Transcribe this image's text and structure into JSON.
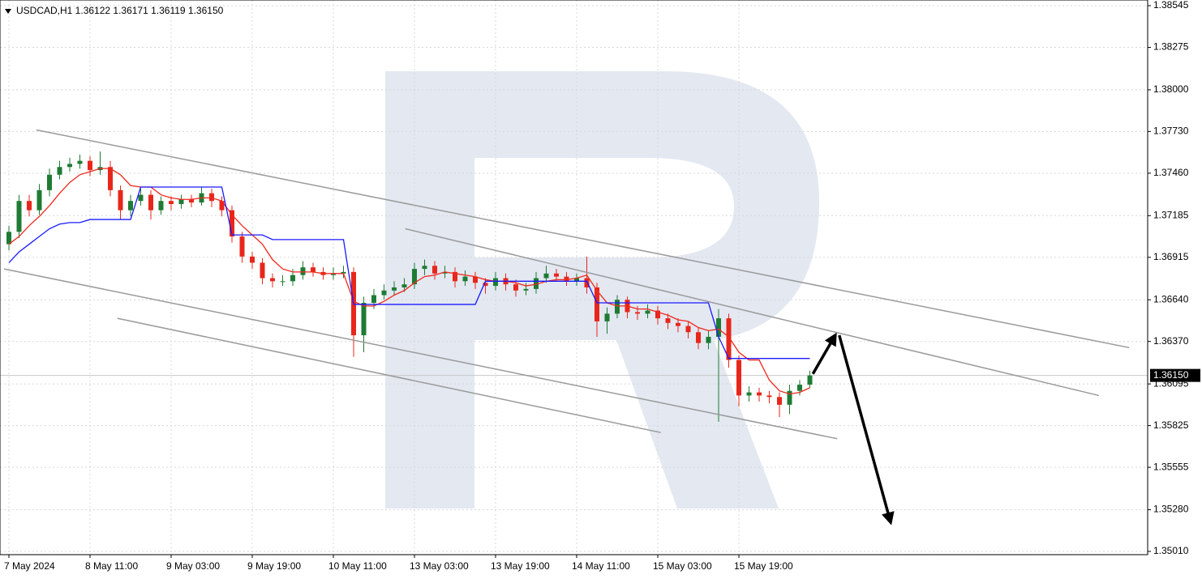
{
  "chart_data": {
    "type": "candlestick",
    "title": "USDCAD,H1  1.36122 1.36171 1.36119 1.36150",
    "categories": [
      "7 May 2024",
      null,
      null,
      null,
      null,
      null,
      null,
      null,
      "8 May 11:00",
      null,
      null,
      null,
      null,
      null,
      null,
      null,
      "9 May 03:00",
      null,
      null,
      null,
      null,
      null,
      null,
      null,
      "9 May 19:00",
      null,
      null,
      null,
      null,
      null,
      null,
      null,
      "10 May 11:00",
      null,
      null,
      null,
      null,
      null,
      null,
      null,
      "13 May 03:00",
      null,
      null,
      null,
      null,
      null,
      null,
      null,
      "13 May 19:00",
      null,
      null,
      null,
      null,
      null,
      null,
      null,
      "14 May 11:00",
      null,
      null,
      null,
      null,
      null,
      null,
      null,
      "15 May 03:00",
      null,
      null,
      null,
      null,
      null,
      null,
      null,
      "15 May 19:00",
      null,
      null,
      null,
      null,
      null,
      null,
      null
    ],
    "open": [
      1.37,
      1.3708,
      1.3728,
      1.3722,
      1.3735,
      1.3745,
      1.375,
      1.3752,
      1.3754,
      1.3748,
      1.375,
      1.3735,
      1.3722,
      1.3728,
      1.3732,
      1.3722,
      1.3728,
      1.3726,
      1.3729,
      1.3727,
      1.3733,
      1.3728,
      1.3722,
      1.3705,
      1.3692,
      1.3688,
      1.3678,
      1.3676,
      1.3676,
      1.368,
      1.3685,
      1.3682,
      1.368,
      1.3681,
      1.3682,
      1.3641,
      1.3662,
      1.3667,
      1.367,
      1.3672,
      1.3674,
      1.3684,
      1.3686,
      1.3681,
      1.3682,
      1.3676,
      1.3679,
      1.3675,
      1.3673,
      1.3678,
      1.3674,
      1.367,
      1.3671,
      1.3678,
      1.3681,
      1.3679,
      1.3676,
      1.3678,
      1.3672,
      1.365,
      1.3655,
      1.3664,
      1.3656,
      1.3655,
      1.3657,
      1.3652,
      1.3649,
      1.3647,
      1.3643,
      1.3636,
      1.364,
      1.3652,
      1.3625,
      1.3602,
      1.3604,
      1.3602,
      1.3601,
      1.3596,
      1.3605,
      1.3609
    ],
    "high": [
      1.3712,
      1.3732,
      1.3732,
      1.3739,
      1.3749,
      1.3754,
      1.3756,
      1.3758,
      1.3757,
      1.376,
      1.3754,
      1.3738,
      1.3732,
      1.3736,
      1.3735,
      1.3731,
      1.3731,
      1.3732,
      1.3732,
      1.3737,
      1.3736,
      1.3731,
      1.3725,
      1.3708,
      1.3695,
      1.3691,
      1.3681,
      1.368,
      1.3684,
      1.3689,
      1.3688,
      1.3685,
      1.3685,
      1.3686,
      1.3685,
      1.3666,
      1.3671,
      1.3674,
      1.3676,
      1.3678,
      1.3688,
      1.369,
      1.3689,
      1.3686,
      1.3685,
      1.3683,
      1.3682,
      1.3678,
      1.3682,
      1.3681,
      1.3677,
      1.3675,
      1.3682,
      1.3686,
      1.3684,
      1.3682,
      1.3681,
      1.3692,
      1.3675,
      1.3659,
      1.3667,
      1.3666,
      1.366,
      1.3661,
      1.366,
      1.3655,
      1.3652,
      1.365,
      1.3646,
      1.3644,
      1.3658,
      1.3655,
      1.3628,
      1.3608,
      1.3607,
      1.3605,
      1.3604,
      1.3609,
      1.3612,
      1.3618
    ],
    "low": [
      1.3696,
      1.3704,
      1.3718,
      1.3719,
      1.3731,
      1.3742,
      1.3747,
      1.3749,
      1.3744,
      1.3745,
      1.3731,
      1.3716,
      1.3718,
      1.3725,
      1.3716,
      1.3719,
      1.3722,
      1.3723,
      1.3724,
      1.3725,
      1.3724,
      1.3718,
      1.3701,
      1.3688,
      1.3684,
      1.3674,
      1.3672,
      1.3673,
      1.3673,
      1.3677,
      1.3679,
      1.3677,
      1.3677,
      1.3678,
      1.3627,
      1.363,
      1.3658,
      1.3664,
      1.3667,
      1.3669,
      1.3671,
      1.368,
      1.3677,
      1.3678,
      1.3672,
      1.3673,
      1.3671,
      1.3668,
      1.367,
      1.367,
      1.3666,
      1.3667,
      1.3668,
      1.3675,
      1.3676,
      1.3673,
      1.3673,
      1.3668,
      1.364,
      1.3642,
      1.3652,
      1.3652,
      1.3651,
      1.3652,
      1.3648,
      1.3645,
      1.3643,
      1.3639,
      1.3632,
      1.3632,
      1.3585,
      1.362,
      1.3595,
      1.3598,
      1.3598,
      1.3597,
      1.3588,
      1.359,
      1.3602,
      1.3607
    ],
    "close": [
      1.3708,
      1.3728,
      1.3722,
      1.3735,
      1.3745,
      1.375,
      1.3752,
      1.3754,
      1.3748,
      1.375,
      1.3735,
      1.3722,
      1.3728,
      1.3732,
      1.3722,
      1.3728,
      1.3726,
      1.3729,
      1.3727,
      1.3733,
      1.3728,
      1.3722,
      1.3705,
      1.3692,
      1.3688,
      1.3678,
      1.3676,
      1.3676,
      1.368,
      1.3685,
      1.3682,
      1.368,
      1.3681,
      1.3682,
      1.3641,
      1.3662,
      1.3667,
      1.367,
      1.3672,
      1.3674,
      1.3684,
      1.3686,
      1.3681,
      1.3682,
      1.3676,
      1.3679,
      1.3675,
      1.3673,
      1.3678,
      1.3674,
      1.367,
      1.3671,
      1.3678,
      1.3681,
      1.3679,
      1.3676,
      1.3678,
      1.3672,
      1.365,
      1.3655,
      1.3664,
      1.3656,
      1.3655,
      1.3657,
      1.3652,
      1.3649,
      1.3647,
      1.3643,
      1.3636,
      1.364,
      1.3652,
      1.3625,
      1.3602,
      1.3604,
      1.3602,
      1.3601,
      1.3596,
      1.3605,
      1.3609,
      1.3615
    ],
    "up_color": "#1e7b34",
    "down_color": "#e8261b",
    "lines": [
      {
        "color": "#f0281c",
        "values": [
          1.37,
          1.3705,
          1.3712,
          1.3718,
          1.3725,
          1.3733,
          1.374,
          1.3745,
          1.3747,
          1.3749,
          1.3749,
          1.3745,
          1.3738,
          1.3737,
          1.3737,
          1.3732,
          1.373,
          1.3729,
          1.3729,
          1.373,
          1.373,
          1.3728,
          1.3719,
          1.3712,
          1.3706,
          1.37,
          1.369,
          1.3684,
          1.3682,
          1.3682,
          1.3682,
          1.3681,
          1.3681,
          1.3681,
          1.3663,
          1.366,
          1.366,
          1.3663,
          1.3667,
          1.367,
          1.3675,
          1.3679,
          1.368,
          1.3682,
          1.3681,
          1.368,
          1.3679,
          1.3677,
          1.3676,
          1.3676,
          1.3675,
          1.3673,
          1.3674,
          1.3676,
          1.3677,
          1.3677,
          1.3678,
          1.368,
          1.367,
          1.3662,
          1.366,
          1.366,
          1.3658,
          1.3658,
          1.3656,
          1.3654,
          1.3651,
          1.365,
          1.3646,
          1.3644,
          1.3645,
          1.364,
          1.363,
          1.3625,
          1.3625,
          1.3612,
          1.3605,
          1.3603,
          1.3604,
          1.3607
        ]
      },
      {
        "color": "#1a1aff",
        "values": [
          1.3688,
          1.3695,
          1.37,
          1.3705,
          1.371,
          1.3713,
          1.3714,
          1.3714,
          1.3716,
          1.3716,
          1.3716,
          1.3716,
          1.3716,
          1.3737,
          1.3737,
          1.3737,
          1.3737,
          1.3737,
          1.3737,
          1.3737,
          1.3737,
          1.3737,
          1.3706,
          1.3706,
          1.3706,
          1.3706,
          1.3703,
          1.3703,
          1.3703,
          1.3703,
          1.3703,
          1.3703,
          1.3703,
          1.3703,
          1.3661,
          1.3661,
          1.3661,
          1.3661,
          1.3661,
          1.3661,
          1.3661,
          1.3661,
          1.3661,
          1.3661,
          1.3661,
          1.3661,
          1.3661,
          1.3676,
          1.3676,
          1.3676,
          1.3676,
          1.3676,
          1.3676,
          1.3676,
          1.3676,
          1.3676,
          1.3676,
          1.3676,
          1.3662,
          1.3662,
          1.3662,
          1.3662,
          1.3662,
          1.3662,
          1.3662,
          1.3662,
          1.3662,
          1.3662,
          1.3662,
          1.3662,
          1.364,
          1.3626,
          1.3626,
          1.3626,
          1.3626,
          1.3626,
          1.3626,
          1.3626,
          1.3626,
          1.3626
        ]
      }
    ],
    "trendlines": [
      {
        "x": [
          2.72,
          110.5
        ],
        "y": [
          1.3774,
          1.3633
        ]
      },
      {
        "x": [
          39.1,
          107.5
        ],
        "y": [
          1.371,
          1.3602
        ]
      },
      {
        "x": [
          -0.48,
          81.7
        ],
        "y": [
          1.3684,
          1.3574
        ]
      },
      {
        "x": [
          10.7,
          64.3
        ],
        "y": [
          1.3652,
          1.3578
        ]
      }
    ],
    "arrows": [
      {
        "x": [
          79.3,
          81.5
        ],
        "y": [
          1.3616,
          1.3641
        ]
      },
      {
        "x": [
          81.9,
          86.96
        ],
        "y": [
          1.3641,
          1.352
        ]
      }
    ],
    "last_price": {
      "value": 1.3615,
      "label": "1.36150"
    },
    "ylim": [
      1.3501,
      1.38545
    ],
    "yticks": [
      {
        "value": 1.38545,
        "label": "1.38545"
      },
      {
        "value": 1.38275,
        "label": "1.38275"
      },
      {
        "value": 1.38,
        "label": "1.38000"
      },
      {
        "value": 1.3773,
        "label": "1.37730"
      },
      {
        "value": 1.3746,
        "label": "1.37460"
      },
      {
        "value": 1.37185,
        "label": "1.37185"
      },
      {
        "value": 1.36915,
        "label": "1.36915"
      },
      {
        "value": 1.3664,
        "label": "1.36640"
      },
      {
        "value": 1.3637,
        "label": "1.36370"
      },
      {
        "value": 1.36095,
        "label": "1.36095"
      },
      {
        "value": 1.35825,
        "label": "1.35825"
      },
      {
        "value": 1.35555,
        "label": "1.35555"
      },
      {
        "value": 1.3528,
        "label": "1.35280"
      },
      {
        "value": 1.3501,
        "label": "1.35010"
      }
    ],
    "grid": true
  }
}
